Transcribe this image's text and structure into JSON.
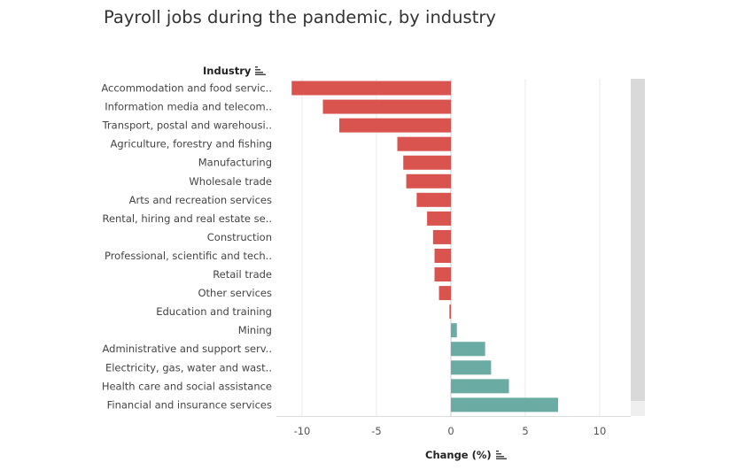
{
  "title": "Payroll jobs during the pandemic, by industry",
  "y_header": "Industry",
  "x_header": "Change (%)",
  "icons": {
    "sort": "sort-descending-icon"
  },
  "colors": {
    "negative": "#d9534f",
    "positive": "#6aaba3",
    "grid": "#e8e8e8",
    "zero": "#cfcfcf"
  },
  "chart_data": {
    "type": "bar",
    "orientation": "horizontal",
    "xlabel": "Change (%)",
    "ylabel": "Industry",
    "xlim": [
      -11.5,
      12
    ],
    "xticks": [
      -10,
      -5,
      0,
      5,
      10
    ],
    "grid": true,
    "categories": [
      "Accommodation and food servic..",
      "Information media and telecom..",
      "Transport, postal and warehousi..",
      "Agriculture, forestry and fishing",
      "Manufacturing",
      "Wholesale trade",
      "Arts and recreation services",
      "Rental, hiring and real estate se..",
      "Construction",
      "Professional, scientific and tech..",
      "Retail trade",
      "Other services",
      "Education and training",
      "Mining",
      "Administrative and support serv..",
      "Electricity, gas, water and wast..",
      "Health care and social assistance",
      "Financial and insurance services"
    ],
    "values": [
      -10.7,
      -8.6,
      -7.5,
      -3.6,
      -3.2,
      -3.0,
      -2.3,
      -1.6,
      -1.2,
      -1.1,
      -1.1,
      -0.8,
      -0.1,
      0.4,
      2.3,
      2.7,
      3.9,
      7.2
    ]
  }
}
